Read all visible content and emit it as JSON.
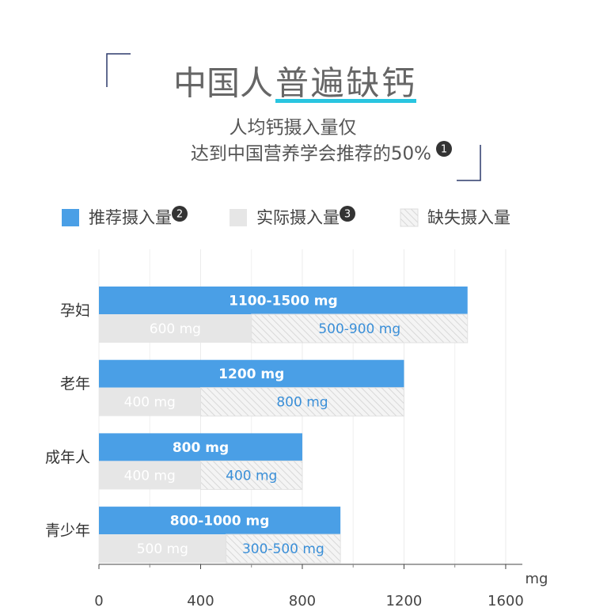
{
  "header": {
    "title_plain": "中国人",
    "title_highlight": "普遍缺钙",
    "subtitle_lines": [
      "人均钙摄入量仅",
      "达到中国营养学会推荐的50%"
    ],
    "subtitle_footnote": "1"
  },
  "chart_data": {
    "type": "bar",
    "orientation": "horizontal",
    "categories": [
      "孕妇",
      "老年",
      "成年人",
      "青少年"
    ],
    "series": [
      {
        "name": "推荐摄入量",
        "footnote": "2",
        "color": "#4a9fe6",
        "values": [
          1450,
          1200,
          800,
          950
        ],
        "value_labels": [
          "1100-1500 mg",
          "1200 mg",
          "800 mg",
          "800-1000 mg"
        ]
      },
      {
        "name": "实际摄入量",
        "footnote": "3",
        "color": "#e6e6e6",
        "values": [
          600,
          400,
          400,
          500
        ],
        "value_labels": [
          "600 mg",
          "400 mg",
          "400 mg",
          "500 mg"
        ]
      },
      {
        "name": "缺失摄入量",
        "color": "hatch",
        "stack_on": 1,
        "values": [
          850,
          800,
          400,
          450
        ],
        "value_labels": [
          "500-900 mg",
          "800 mg",
          "400 mg",
          "300-500 mg"
        ]
      }
    ],
    "xlim": [
      0,
      1650
    ],
    "xticks": [
      0,
      400,
      800,
      1200,
      1600
    ],
    "xminorticks": [
      200,
      600,
      1000,
      1400
    ],
    "xlabel": "mg",
    "grid": true,
    "legend": "top"
  }
}
